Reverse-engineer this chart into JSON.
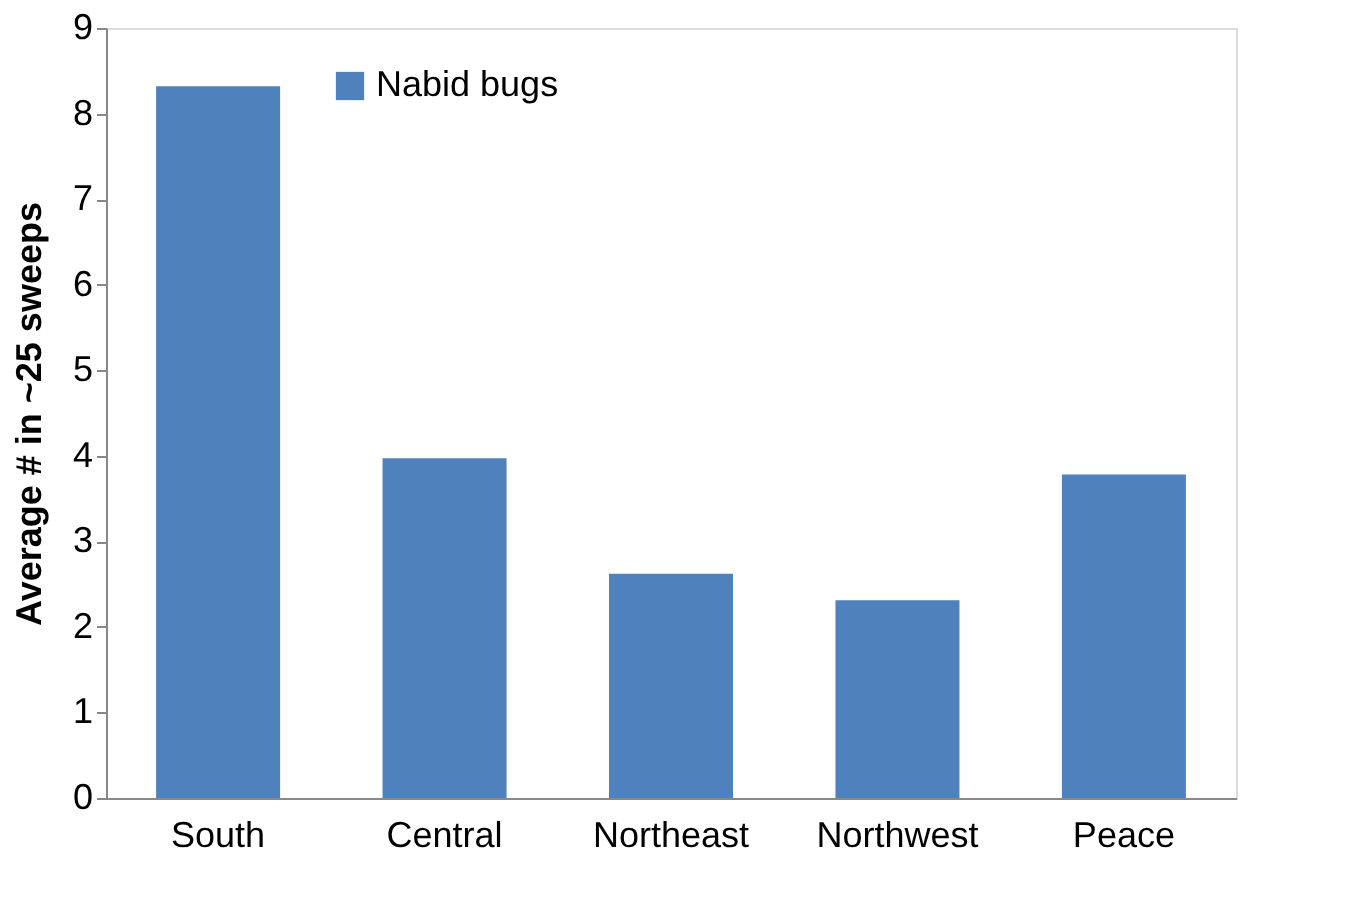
{
  "chart_data": {
    "type": "bar",
    "ylabel": "Average # in ~25 sweeps",
    "categories": [
      "South",
      "Central",
      "Northeast",
      "Northwest",
      "Peace"
    ],
    "series": [
      {
        "name": "Nabid bugs",
        "color": "#4f81bd",
        "values": [
          8.32,
          3.97,
          2.62,
          2.31,
          3.78
        ]
      }
    ],
    "ylim": [
      0,
      9
    ],
    "yticks": [
      0,
      1,
      2,
      3,
      4,
      5,
      6,
      7,
      8,
      9
    ],
    "grid": false,
    "legend": "top left"
  }
}
